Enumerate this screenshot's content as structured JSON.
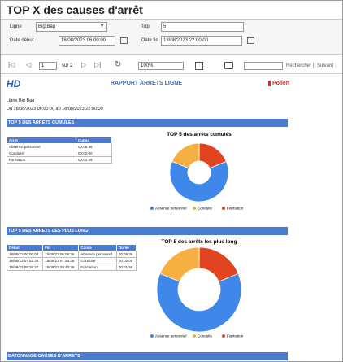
{
  "window_title": "TOP X des causes d'arrêt",
  "parameters": {
    "ligne_label": "Ligne",
    "ligne_value": "Big Bag",
    "top_label": "Top",
    "top_value": "5",
    "date_debut_label": "Date début",
    "date_debut_value": "18/08/2023 06:00:00",
    "date_fin_label": "Date fin",
    "date_fin_value": "18/08/2023 22:00:00"
  },
  "toolbar": {
    "page": "1",
    "page_total": "sur 2",
    "zoom": "100%",
    "find": "Rechercher",
    "separator": "|",
    "next": "Suivant"
  },
  "report": {
    "logo_left": "HD",
    "title": "RAPPORT ARRETS LIGNE",
    "logo_right": "Pollen",
    "line": "Ligne Big Bag",
    "period": "Du 18/08/2023 06:00:00 au 18/08/2023 22:00:00",
    "sections": [
      {
        "title": "TOP 5 DES ARRETS CUMULES",
        "table": {
          "columns": [
            "Arret",
            "Cumul"
          ],
          "rows": [
            [
              "Absence personnel",
              "00:06:36"
            ],
            [
              "Conduite",
              "00:02:00"
            ],
            [
              "Formation",
              "00:01:59"
            ]
          ]
        },
        "chart": {
          "type": "donut",
          "title": "TOP 5 des arrêts cumulés",
          "categories": [
            "Absence personnel",
            "Conduite",
            "Formation"
          ],
          "colors": [
            "#3f87e8",
            "#f5b041",
            "#e0451f"
          ],
          "values": [
            396,
            120,
            119
          ]
        }
      },
      {
        "title": "TOP 5 DES ARRETS LES PLUS LONG",
        "table": {
          "columns": [
            "Début",
            "Fin",
            "Cause",
            "Durée"
          ],
          "rows": [
            [
              "18/08/23 06:00:00",
              "18/08/23 06:06:36",
              "Absence personnel",
              "00:06:36"
            ],
            [
              "18/08/23 07:52:36",
              "18/08/23 07:54:36",
              "Conduite",
              "00:02:00"
            ],
            [
              "18/08/23 09:38:37",
              "18/08/23 09:40:36",
              "Formation",
              "00:01:59"
            ]
          ]
        },
        "chart": {
          "type": "donut",
          "title": "TOP 5 des arrêts les plus long",
          "categories": [
            "Absence personnel",
            "Conduite",
            "Formation"
          ],
          "colors": [
            "#3f87e8",
            "#f5b041",
            "#e0451f"
          ],
          "values": [
            396,
            120,
            119
          ]
        }
      },
      {
        "title": "BATONNAGE CAUSES D'ARRETS"
      }
    ]
  }
}
